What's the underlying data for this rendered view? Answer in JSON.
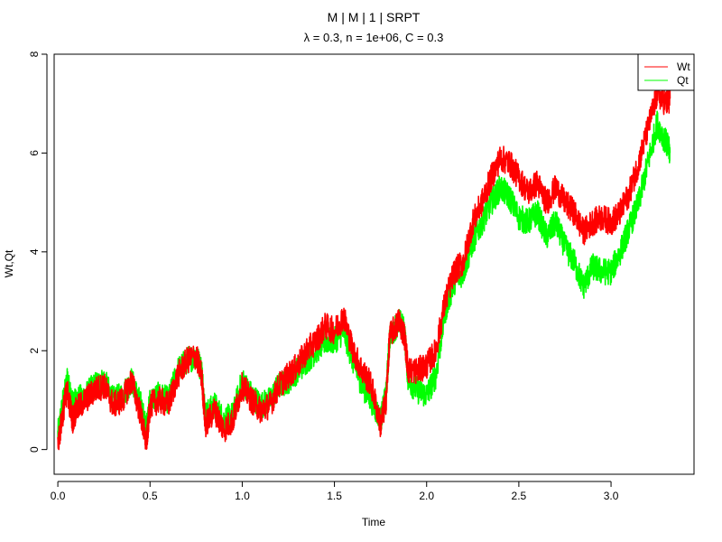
{
  "chart_data": {
    "type": "line",
    "title": "M | M | 1 | SRPT",
    "subtitle": "λ = 0.3, n = 1e+06, C = 0.3",
    "xlabel": "Time",
    "ylabel": "Wt,Qt",
    "xlim": [
      -0.02,
      3.45
    ],
    "ylim": [
      -0.5,
      8.0
    ],
    "x_ticks": [
      0.0,
      0.5,
      1.0,
      1.5,
      2.0,
      2.5,
      3.0
    ],
    "x_tick_labels": [
      "0.0",
      "0.5",
      "1.0",
      "1.5",
      "2.0",
      "2.5",
      "3.0"
    ],
    "y_ticks": [
      0,
      2,
      4,
      6,
      8
    ],
    "y_tick_labels": [
      "0",
      "2",
      "4",
      "6",
      "8"
    ],
    "grid": false,
    "legend_position": "top-right",
    "series": [
      {
        "name": "Wt",
        "color": "#ff0000",
        "x": [
          0.0,
          0.03,
          0.05,
          0.08,
          0.1,
          0.15,
          0.2,
          0.25,
          0.3,
          0.35,
          0.4,
          0.45,
          0.48,
          0.5,
          0.55,
          0.6,
          0.65,
          0.7,
          0.75,
          0.78,
          0.8,
          0.85,
          0.9,
          0.95,
          1.0,
          1.05,
          1.1,
          1.15,
          1.2,
          1.25,
          1.3,
          1.35,
          1.4,
          1.45,
          1.5,
          1.55,
          1.6,
          1.65,
          1.7,
          1.75,
          1.78,
          1.8,
          1.85,
          1.88,
          1.9,
          1.95,
          2.0,
          2.05,
          2.1,
          2.15,
          2.2,
          2.25,
          2.3,
          2.35,
          2.4,
          2.45,
          2.5,
          2.55,
          2.6,
          2.65,
          2.7,
          2.75,
          2.8,
          2.85,
          2.9,
          2.95,
          3.0,
          3.05,
          3.1,
          3.15,
          3.2,
          3.25,
          3.3,
          3.32
        ],
        "y": [
          0.1,
          0.8,
          1.2,
          0.6,
          0.8,
          1.0,
          1.2,
          1.3,
          0.9,
          1.0,
          1.4,
          0.7,
          0.1,
          0.9,
          1.0,
          0.9,
          1.5,
          1.8,
          1.9,
          1.5,
          0.5,
          0.8,
          0.4,
          0.6,
          1.3,
          1.0,
          0.8,
          0.9,
          1.3,
          1.5,
          1.7,
          2.0,
          2.2,
          2.5,
          2.4,
          2.7,
          2.0,
          1.6,
          1.3,
          0.5,
          1.0,
          2.3,
          2.6,
          2.3,
          1.6,
          1.6,
          1.7,
          2.0,
          3.0,
          3.6,
          3.8,
          4.6,
          5.0,
          5.5,
          5.9,
          5.8,
          5.5,
          5.2,
          5.4,
          5.0,
          5.3,
          5.0,
          4.8,
          4.4,
          4.6,
          4.7,
          4.6,
          4.8,
          5.2,
          5.8,
          6.5,
          7.2,
          7.0,
          7.1
        ]
      },
      {
        "name": "Qt",
        "color": "#00ff00",
        "x": [
          0.0,
          0.03,
          0.05,
          0.08,
          0.1,
          0.15,
          0.2,
          0.25,
          0.3,
          0.35,
          0.4,
          0.45,
          0.48,
          0.5,
          0.55,
          0.6,
          0.65,
          0.7,
          0.75,
          0.78,
          0.8,
          0.85,
          0.9,
          0.95,
          1.0,
          1.05,
          1.1,
          1.15,
          1.2,
          1.25,
          1.3,
          1.35,
          1.4,
          1.45,
          1.5,
          1.55,
          1.6,
          1.65,
          1.7,
          1.75,
          1.78,
          1.8,
          1.85,
          1.88,
          1.9,
          1.95,
          2.0,
          2.05,
          2.1,
          2.15,
          2.2,
          2.25,
          2.3,
          2.35,
          2.4,
          2.45,
          2.5,
          2.55,
          2.6,
          2.65,
          2.7,
          2.75,
          2.8,
          2.85,
          2.9,
          2.95,
          3.0,
          3.05,
          3.1,
          3.15,
          3.2,
          3.25,
          3.3,
          3.32
        ],
        "y": [
          0.3,
          1.0,
          1.4,
          0.9,
          1.0,
          1.1,
          1.3,
          1.4,
          1.0,
          1.1,
          1.4,
          0.9,
          0.4,
          1.0,
          1.1,
          1.0,
          1.6,
          1.8,
          1.9,
          1.6,
          0.7,
          0.9,
          0.6,
          0.7,
          1.4,
          1.1,
          0.9,
          1.0,
          1.3,
          1.4,
          1.6,
          1.8,
          2.0,
          2.2,
          2.2,
          2.4,
          1.8,
          1.3,
          1.0,
          0.6,
          1.1,
          2.3,
          2.6,
          2.4,
          1.4,
          1.2,
          1.1,
          1.5,
          2.8,
          3.4,
          3.6,
          4.2,
          4.6,
          5.0,
          5.3,
          5.1,
          4.7,
          4.6,
          4.8,
          4.3,
          4.6,
          4.1,
          3.8,
          3.3,
          3.7,
          3.6,
          3.6,
          4.0,
          4.5,
          5.0,
          5.8,
          6.6,
          6.2,
          6.0
        ]
      }
    ]
  }
}
